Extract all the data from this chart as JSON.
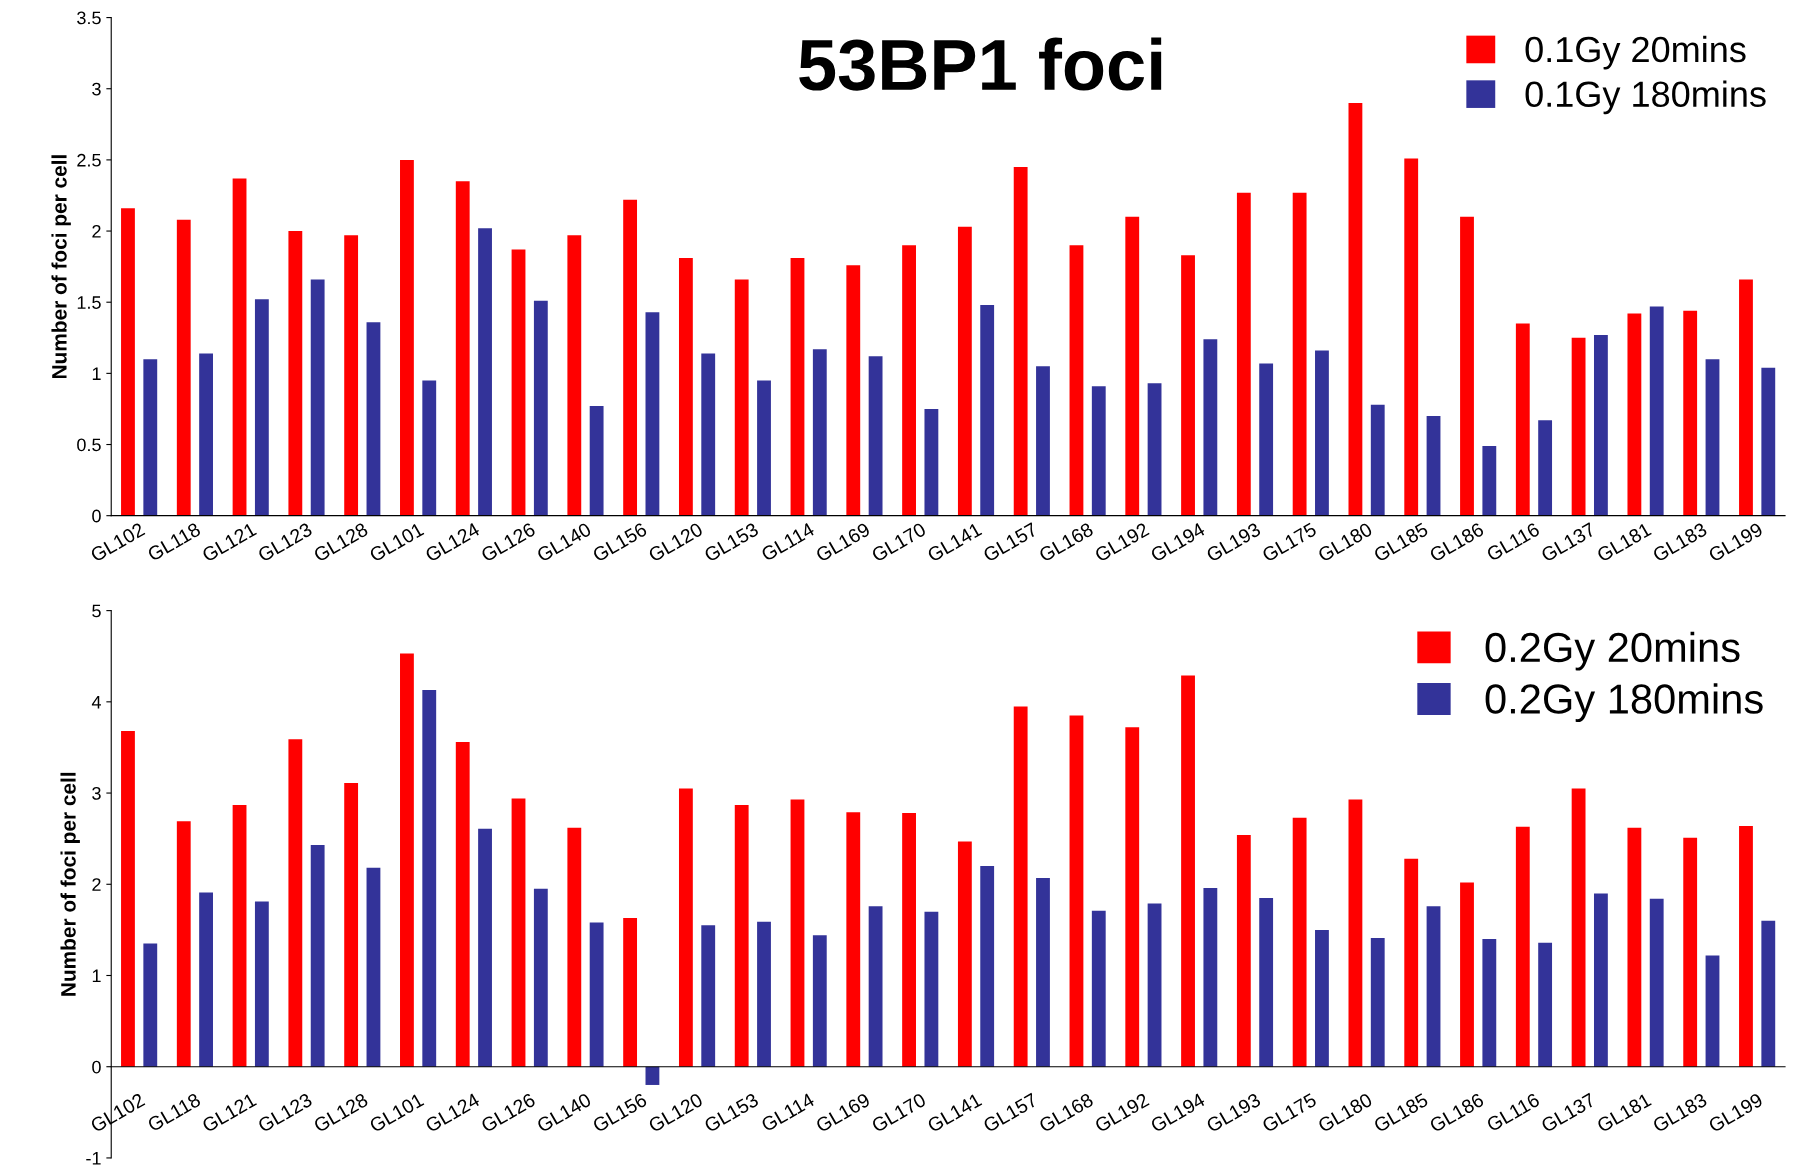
{
  "chart_data": [
    {
      "type": "bar",
      "title": "53BP1 foci",
      "ylabel": "Number of foci per cell",
      "categories": [
        "GL102",
        "GL118",
        "GL121",
        "GL123",
        "GL128",
        "GL101",
        "GL124",
        "GL126",
        "GL140",
        "GL156",
        "GL120",
        "GL153",
        "GL114",
        "GL169",
        "GL170",
        "GL141",
        "GL157",
        "GL168",
        "GL192",
        "GL194",
        "GL193",
        "GL175",
        "GL180",
        "GL185",
        "GL186",
        "GL116",
        "GL137",
        "GL181",
        "GL183",
        "GL199"
      ],
      "series": [
        {
          "name": "0.1Gy 20mins",
          "color": "#ff0000",
          "values": [
            2.16,
            2.08,
            2.37,
            2.0,
            1.97,
            2.5,
            2.35,
            1.87,
            1.97,
            2.22,
            1.81,
            1.66,
            1.81,
            1.76,
            1.9,
            2.03,
            2.45,
            1.9,
            2.1,
            1.83,
            2.27,
            2.27,
            2.9,
            2.51,
            2.1,
            1.35,
            1.25,
            1.42,
            1.44,
            1.66
          ]
        },
        {
          "name": "0.1Gy 180mins",
          "color": "#333399",
          "values": [
            1.1,
            1.14,
            1.52,
            1.66,
            1.36,
            0.95,
            2.02,
            1.51,
            0.77,
            1.43,
            1.14,
            0.95,
            1.17,
            1.12,
            0.75,
            1.48,
            1.05,
            0.91,
            0.93,
            1.24,
            1.07,
            1.16,
            0.78,
            0.7,
            0.49,
            0.67,
            1.27,
            1.47,
            1.1,
            1.04
          ]
        }
      ],
      "ylim": [
        0,
        3.5
      ],
      "yticks": [
        0,
        0.5,
        1,
        1.5,
        2,
        2.5,
        3,
        3.5
      ],
      "legend": "top right",
      "grid": false
    },
    {
      "type": "bar",
      "ylabel": "Number of foci per cell",
      "categories": [
        "GL102",
        "GL118",
        "GL121",
        "GL123",
        "GL128",
        "GL101",
        "GL124",
        "GL126",
        "GL140",
        "GL156",
        "GL120",
        "GL153",
        "GL114",
        "GL169",
        "GL170",
        "GL141",
        "GL157",
        "GL168",
        "GL192",
        "GL194",
        "GL193",
        "GL175",
        "GL180",
        "GL185",
        "GL186",
        "GL116",
        "GL137",
        "GL181",
        "GL183",
        "GL199"
      ],
      "series": [
        {
          "name": "0.2Gy 20mins",
          "color": "#ff0000",
          "values": [
            3.68,
            2.69,
            2.87,
            3.59,
            3.11,
            4.53,
            3.56,
            2.94,
            2.62,
            1.63,
            3.05,
            2.87,
            2.93,
            2.79,
            2.78,
            2.47,
            3.95,
            3.85,
            3.72,
            4.29,
            2.54,
            2.73,
            2.93,
            2.28,
            2.02,
            2.63,
            3.05,
            2.62,
            2.51,
            2.64
          ]
        },
        {
          "name": "0.2Gy 180mins",
          "color": "#333399",
          "values": [
            1.35,
            1.91,
            1.81,
            2.43,
            2.18,
            4.13,
            2.61,
            1.95,
            1.58,
            -0.2,
            1.55,
            1.59,
            1.44,
            1.76,
            1.7,
            2.2,
            2.07,
            1.71,
            1.79,
            1.96,
            1.85,
            1.5,
            1.41,
            1.76,
            1.4,
            1.36,
            1.9,
            1.84,
            1.22,
            1.6
          ]
        }
      ],
      "ylim": [
        -1,
        5
      ],
      "yticks": [
        -1,
        0,
        1,
        2,
        3,
        4,
        5
      ],
      "legend": "top right",
      "grid": false
    }
  ]
}
